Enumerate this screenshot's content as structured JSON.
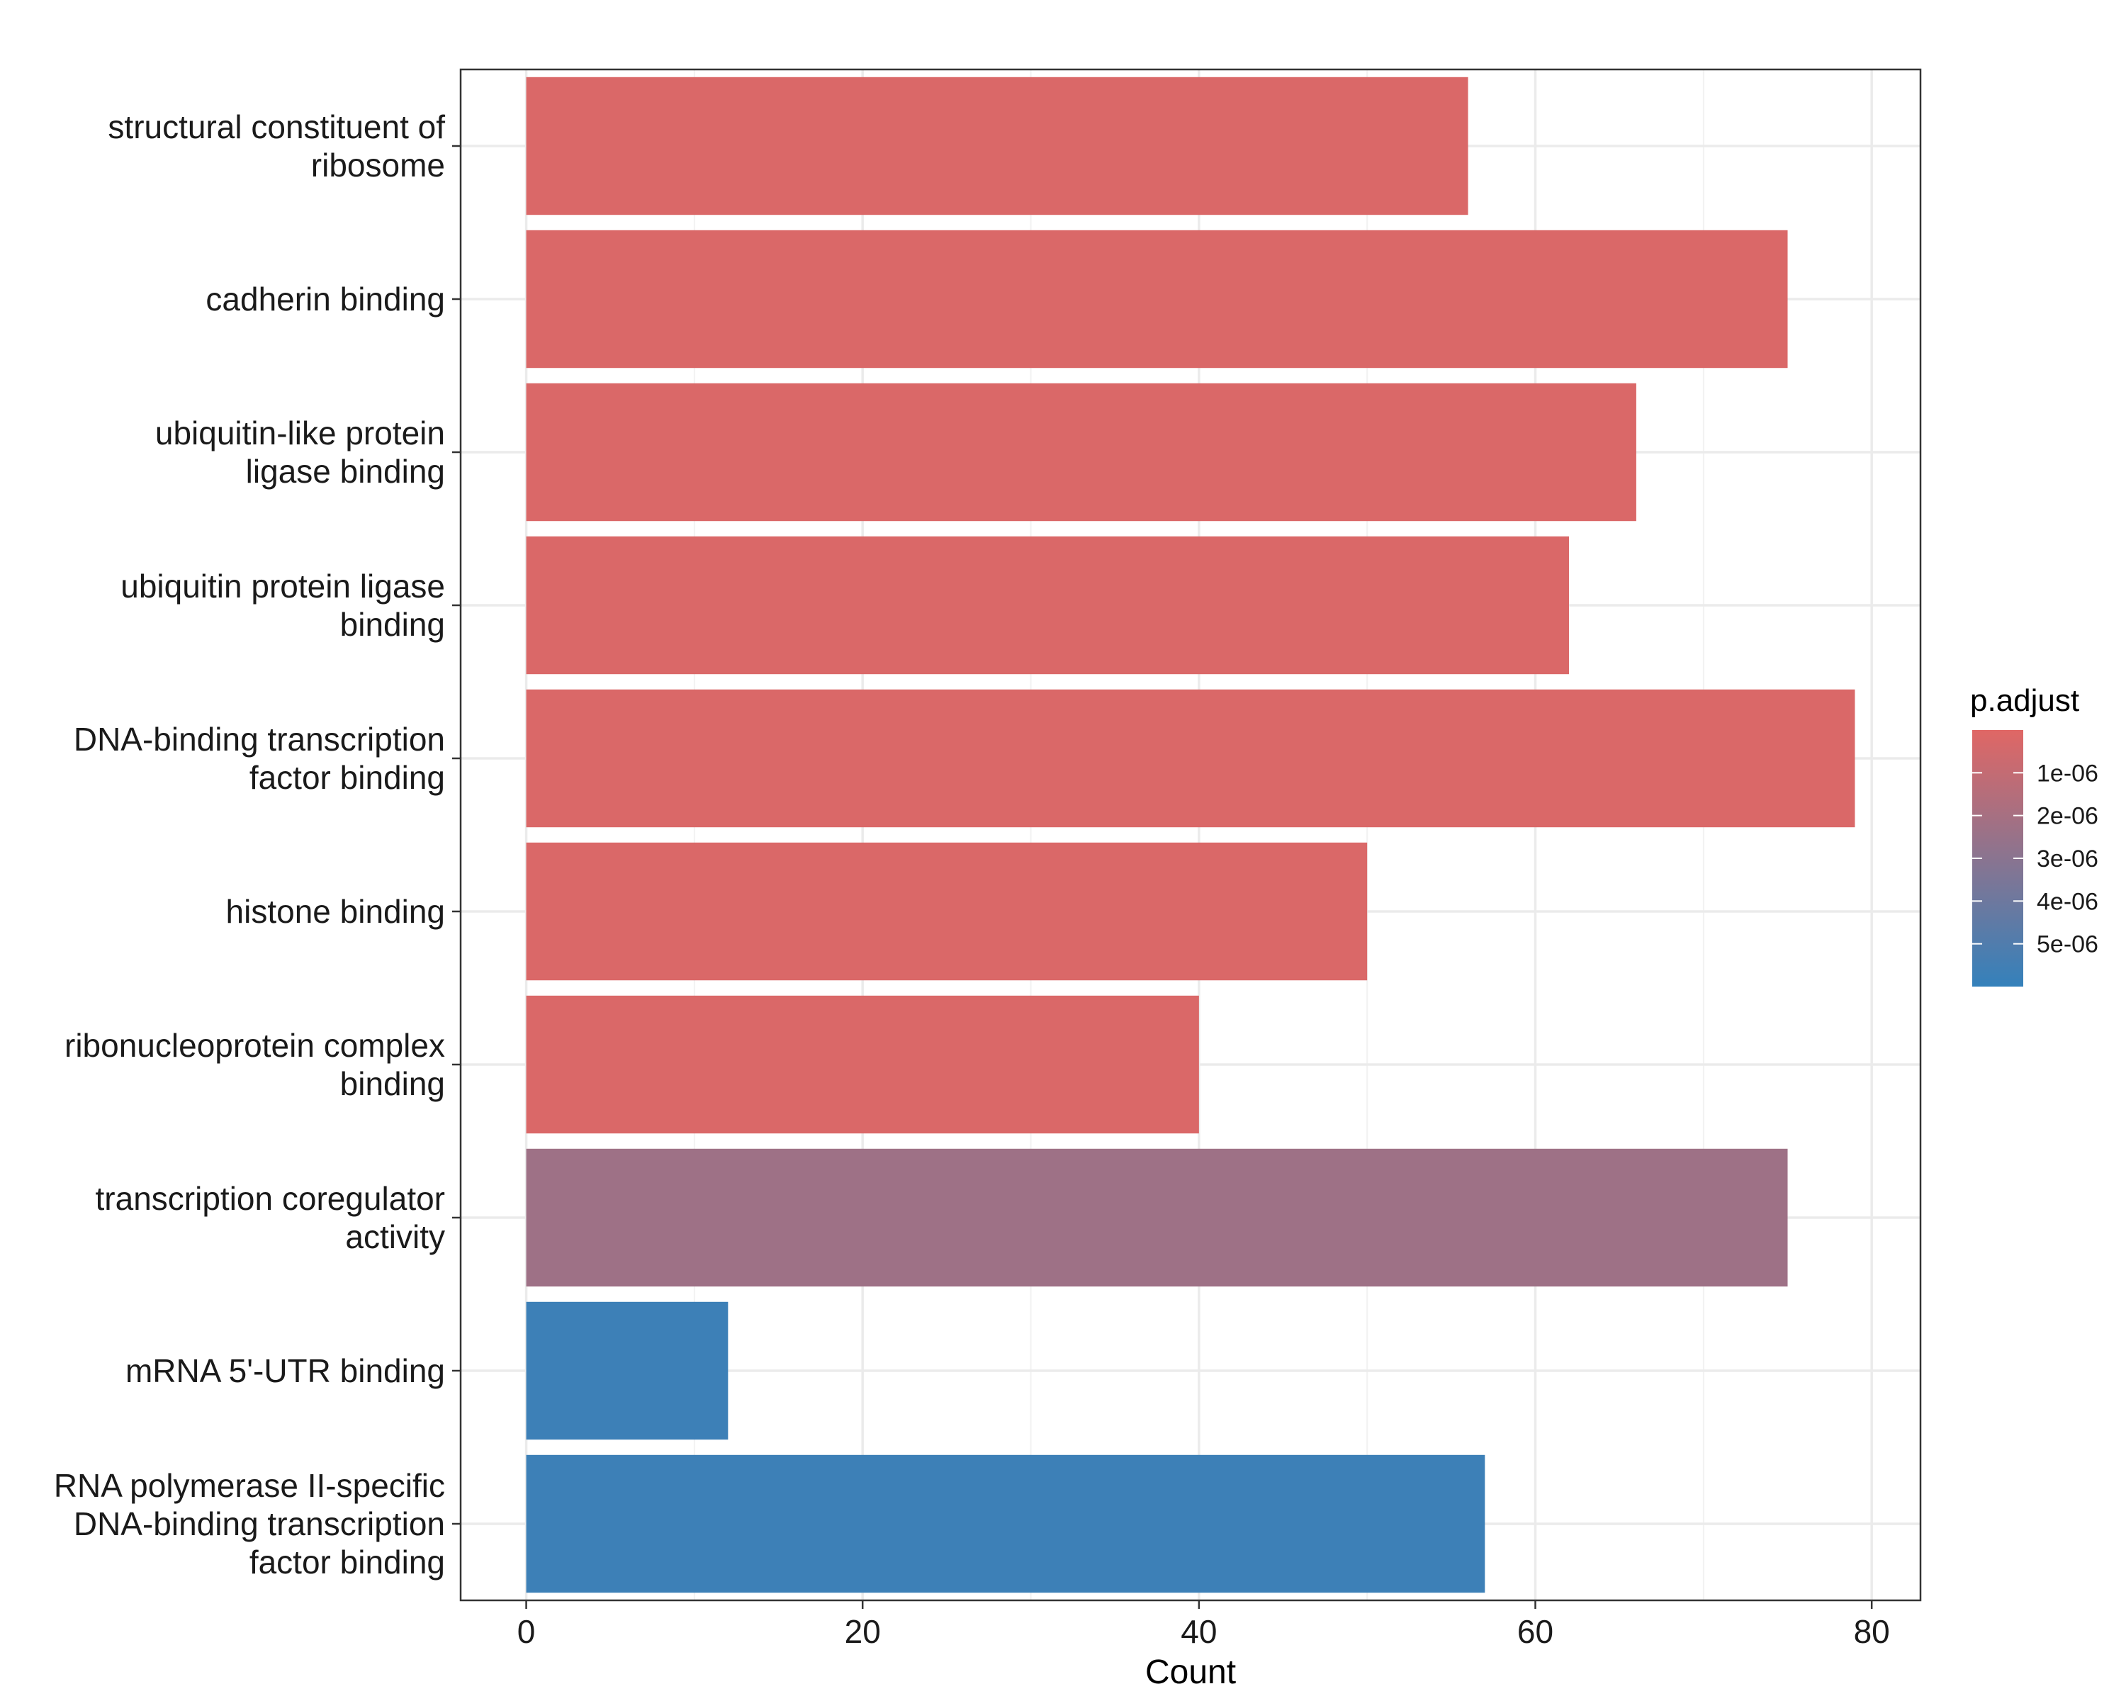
{
  "chart_data": {
    "type": "bar",
    "orientation": "horizontal",
    "categories": [
      [
        "structural constituent of",
        "ribosome"
      ],
      [
        "cadherin binding"
      ],
      [
        "ubiquitin-like protein",
        "ligase binding"
      ],
      [
        "ubiquitin protein ligase",
        "binding"
      ],
      [
        "DNA-binding transcription",
        "factor binding"
      ],
      [
        "histone binding"
      ],
      [
        "ribonucleoprotein complex",
        "binding"
      ],
      [
        "transcription coregulator",
        "activity"
      ],
      [
        "mRNA 5'-UTR binding"
      ],
      [
        "RNA polymerase II-specific",
        "DNA-binding transcription",
        "factor binding"
      ]
    ],
    "values": [
      56,
      75,
      66,
      62,
      79,
      50,
      40,
      75,
      12,
      57
    ],
    "p_adjust": [
      2e-07,
      2e-07,
      2e-07,
      2e-07,
      2e-07,
      2e-07,
      2e-07,
      2.3e-06,
      5.7e-06,
      5.7e-06
    ],
    "xlabel": "Count",
    "ylabel": "",
    "xlim": [
      -3.9,
      82.9
    ],
    "x_ticks": [
      0,
      20,
      40,
      60,
      80
    ],
    "grid": true,
    "legend": {
      "title": "p.adjust",
      "placement": "right",
      "range": [
        0,
        6e-06
      ],
      "ticks": [
        1e-06,
        2e-06,
        3e-06,
        4e-06,
        5e-06
      ],
      "tick_labels": [
        "1e-06",
        "2e-06",
        "3e-06",
        "4e-06",
        "5e-06"
      ],
      "color_low": "#e06765",
      "color_high": "#3481bb"
    }
  }
}
